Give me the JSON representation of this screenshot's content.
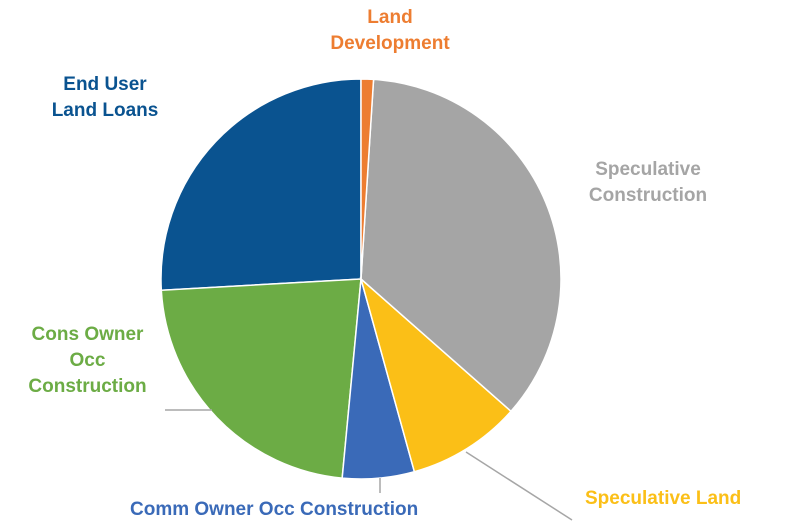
{
  "chart_data": {
    "type": "pie",
    "categories": [
      "Land Development",
      "Speculative Construction",
      "Speculative Land",
      "Comm Owner Occ Construction",
      "Cons Owner Occ Construction",
      "End User Land Loans"
    ],
    "values": [
      1,
      35.5,
      9.2,
      5.8,
      22.6,
      25.9
    ],
    "colors": [
      "#ed7d31",
      "#a5a5a5",
      "#fbbf17",
      "#3a6ab8",
      "#6cac45",
      "#0a5390"
    ]
  }
}
